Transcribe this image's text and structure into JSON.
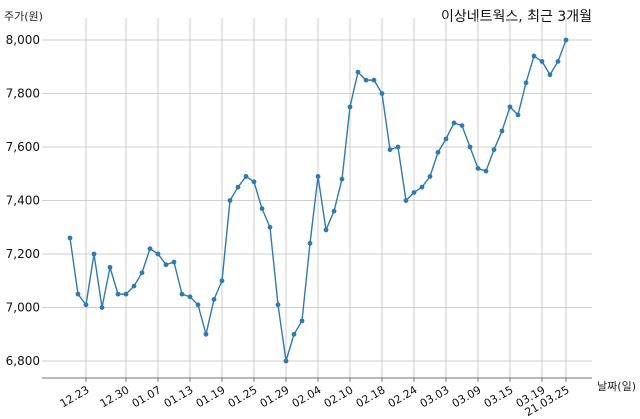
{
  "chart_data": {
    "type": "line",
    "title": "이상네트웍스, 최근 3개월",
    "ylabel": "주가(원)",
    "xlabel": "날짜(일)",
    "ylim": [
      6700,
      8100
    ],
    "yticks": [
      6800,
      7000,
      7200,
      7400,
      7600,
      7800,
      8000
    ],
    "ytick_labels": [
      "6,800",
      "7,000",
      "7,200",
      "7,400",
      "7,600",
      "7,800",
      "8,000"
    ],
    "xtick_labels": [
      "12.23",
      "12.30",
      "01.07",
      "01.13",
      "01.19",
      "01.25",
      "01.29",
      "02.04",
      "02.10",
      "02.18",
      "02.24",
      "03.03",
      "03.09",
      "03.15",
      "03.19",
      "21.03.25"
    ],
    "xtick_index": [
      2,
      7,
      11,
      15,
      19,
      23,
      27,
      31,
      35,
      39,
      43,
      47,
      51,
      55,
      59,
      62
    ],
    "grid": true,
    "series": [
      {
        "color": "#2e7bb0",
        "values": [
          7260,
          7050,
          7010,
          7200,
          7000,
          7150,
          7050,
          7050,
          7080,
          7130,
          7220,
          7200,
          7160,
          7170,
          7050,
          7040,
          7010,
          6900,
          7030,
          7100,
          7400,
          7450,
          7490,
          7470,
          7370,
          7300,
          7010,
          6800,
          6900,
          6950,
          7240,
          7490,
          7290,
          7360,
          7480,
          7750,
          7880,
          7850,
          7850,
          7800,
          7590,
          7600,
          7400,
          7430,
          7450,
          7490,
          7580,
          7630,
          7690,
          7680,
          7600,
          7520,
          7510,
          7590,
          7660,
          7750,
          7720,
          7840,
          7940,
          7920,
          7870,
          7920,
          8000
        ]
      }
    ]
  }
}
